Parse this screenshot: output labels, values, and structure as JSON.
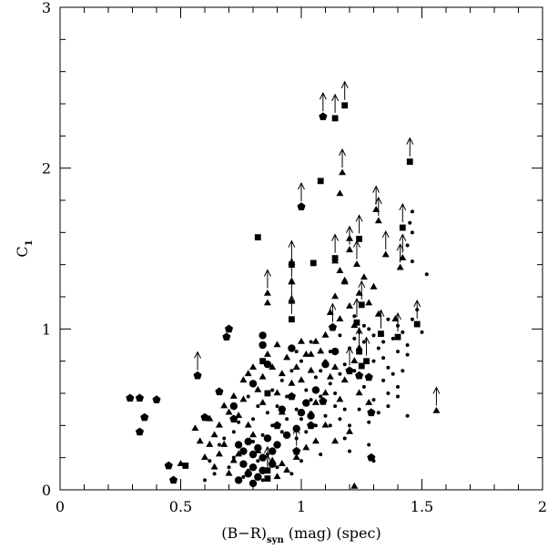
{
  "chart_data": {
    "type": "scatter",
    "xlabel": {
      "main": "(B−R)",
      "sub": "syn",
      "rest": " (mag) (spec)"
    },
    "ylabel": {
      "main": "C",
      "sub": "1"
    },
    "xlim": [
      0,
      2
    ],
    "ylim": [
      0,
      3
    ],
    "x_ticks": [
      "0",
      "0.5",
      "1",
      "1.5",
      "2"
    ],
    "y_ticks": [
      "0",
      "1",
      "2",
      "3"
    ],
    "grid": false,
    "legend": "none",
    "markers": {
      "dot": [
        [
          0.78,
          0.58
        ],
        [
          0.82,
          0.52
        ],
        [
          0.88,
          0.62
        ],
        [
          0.92,
          0.68
        ],
        [
          0.96,
          0.74
        ],
        [
          1.0,
          0.8
        ],
        [
          1.02,
          0.62
        ],
        [
          1.04,
          0.56
        ],
        [
          1.06,
          0.7
        ],
        [
          1.08,
          0.74
        ],
        [
          1.1,
          0.8
        ],
        [
          1.12,
          0.66
        ],
        [
          1.14,
          0.6
        ],
        [
          1.16,
          0.72
        ],
        [
          1.18,
          0.78
        ],
        [
          1.2,
          0.88
        ],
        [
          1.22,
          0.94
        ],
        [
          1.24,
          0.98
        ],
        [
          1.26,
          0.92
        ],
        [
          1.28,
          1.0
        ],
        [
          1.3,
          0.96
        ],
        [
          1.32,
          0.88
        ],
        [
          1.34,
          0.82
        ],
        [
          1.36,
          0.76
        ],
        [
          1.38,
          0.94
        ],
        [
          1.4,
          1.02
        ],
        [
          1.42,
          0.98
        ],
        [
          1.44,
          0.9
        ],
        [
          1.46,
          1.06
        ],
        [
          1.48,
          1.12
        ],
        [
          1.5,
          0.98
        ],
        [
          1.52,
          1.34
        ],
        [
          1.46,
          1.42
        ],
        [
          1.44,
          1.52
        ],
        [
          1.46,
          1.6
        ],
        [
          1.45,
          1.66
        ],
        [
          1.46,
          1.73
        ],
        [
          1.3,
          0.8
        ],
        [
          1.34,
          0.68
        ],
        [
          1.38,
          0.72
        ],
        [
          1.4,
          0.64
        ],
        [
          1.42,
          0.74
        ],
        [
          1.44,
          0.84
        ],
        [
          1.36,
          0.6
        ],
        [
          1.3,
          0.56
        ],
        [
          1.26,
          0.64
        ],
        [
          1.22,
          0.74
        ],
        [
          1.18,
          0.5
        ],
        [
          1.16,
          0.44
        ],
        [
          1.14,
          0.52
        ],
        [
          1.1,
          0.46
        ],
        [
          1.06,
          0.4
        ],
        [
          1.02,
          0.36
        ],
        [
          0.98,
          0.32
        ],
        [
          0.94,
          0.44
        ],
        [
          0.92,
          0.36
        ],
        [
          0.9,
          0.28
        ],
        [
          0.88,
          0.4
        ],
        [
          0.86,
          0.22
        ],
        [
          0.84,
          0.34
        ],
        [
          0.82,
          0.18
        ],
        [
          0.8,
          0.3
        ],
        [
          0.78,
          0.12
        ],
        [
          0.76,
          0.24
        ],
        [
          0.74,
          0.42
        ],
        [
          0.72,
          0.2
        ],
        [
          0.7,
          0.14
        ],
        [
          0.68,
          0.32
        ],
        [
          0.66,
          0.28
        ],
        [
          0.64,
          0.1
        ],
        [
          0.62,
          0.18
        ],
        [
          0.6,
          0.06
        ],
        [
          0.72,
          0.36
        ],
        [
          0.8,
          0.44
        ],
        [
          0.86,
          0.48
        ],
        [
          0.9,
          0.52
        ],
        [
          0.94,
          0.58
        ],
        [
          0.98,
          0.5
        ],
        [
          1.0,
          0.44
        ],
        [
          1.04,
          0.48
        ],
        [
          1.08,
          0.58
        ],
        [
          1.12,
          0.4
        ],
        [
          1.18,
          0.32
        ],
        [
          1.2,
          0.4
        ],
        [
          1.24,
          0.5
        ],
        [
          1.28,
          0.42
        ],
        [
          1.32,
          0.48
        ],
        [
          1.36,
          0.52
        ],
        [
          1.4,
          0.58
        ],
        [
          1.44,
          0.46
        ],
        [
          1.28,
          0.28
        ],
        [
          1.2,
          0.24
        ],
        [
          1.3,
          0.18
        ],
        [
          1.08,
          0.22
        ],
        [
          1.0,
          0.18
        ],
        [
          0.96,
          0.1
        ],
        [
          0.9,
          0.14
        ],
        [
          0.84,
          0.06
        ],
        [
          0.76,
          0.08
        ],
        [
          1.34,
          0.92
        ],
        [
          1.26,
          1.02
        ],
        [
          1.22,
          1.08
        ],
        [
          1.16,
          0.96
        ],
        [
          1.12,
          0.86
        ],
        [
          1.04,
          0.92
        ],
        [
          0.98,
          0.86
        ],
        [
          1.36,
          1.06
        ],
        [
          1.4,
          0.86
        ]
      ],
      "circle": [
        [
          0.84,
          0.96
        ],
        [
          0.84,
          0.9
        ],
        [
          0.96,
          0.88
        ],
        [
          0.86,
          0.78
        ],
        [
          0.8,
          0.66
        ],
        [
          0.72,
          0.52
        ],
        [
          0.74,
          0.28
        ],
        [
          0.76,
          0.24
        ],
        [
          0.78,
          0.3
        ],
        [
          0.8,
          0.22
        ],
        [
          0.82,
          0.26
        ],
        [
          0.84,
          0.2
        ],
        [
          0.86,
          0.32
        ],
        [
          0.88,
          0.24
        ],
        [
          0.9,
          0.28
        ],
        [
          0.76,
          0.16
        ],
        [
          0.78,
          0.1
        ],
        [
          0.8,
          0.14
        ],
        [
          0.82,
          0.08
        ],
        [
          0.84,
          0.12
        ],
        [
          0.74,
          0.06
        ],
        [
          0.8,
          0.04
        ],
        [
          0.94,
          0.34
        ],
        [
          0.98,
          0.38
        ],
        [
          1.0,
          0.48
        ],
        [
          1.02,
          0.54
        ],
        [
          1.06,
          0.62
        ],
        [
          1.1,
          0.78
        ],
        [
          1.14,
          0.86
        ],
        [
          0.92,
          0.5
        ],
        [
          1.04,
          0.46
        ],
        [
          0.88,
          0.16
        ]
      ],
      "pentagon": [
        [
          0.29,
          0.57
        ],
        [
          0.33,
          0.57
        ],
        [
          0.4,
          0.56
        ],
        [
          0.35,
          0.45
        ],
        [
          0.33,
          0.36
        ],
        [
          0.57,
          0.71
        ],
        [
          0.69,
          0.95
        ],
        [
          0.7,
          1.0
        ],
        [
          0.66,
          0.61
        ],
        [
          0.6,
          0.45
        ],
        [
          0.45,
          0.15
        ],
        [
          0.47,
          0.06
        ],
        [
          1.0,
          1.76
        ],
        [
          1.09,
          2.32
        ],
        [
          1.13,
          1.01
        ],
        [
          1.24,
          0.71
        ],
        [
          1.29,
          0.48
        ],
        [
          1.29,
          0.2
        ],
        [
          1.09,
          0.55
        ],
        [
          0.96,
          0.58
        ],
        [
          0.9,
          0.4
        ],
        [
          0.72,
          0.44
        ],
        [
          1.04,
          0.4
        ],
        [
          0.98,
          0.24
        ],
        [
          1.2,
          0.74
        ],
        [
          1.28,
          0.7
        ]
      ],
      "square": [
        [
          0.52,
          0.15
        ],
        [
          0.82,
          1.57
        ],
        [
          0.96,
          1.4
        ],
        [
          1.05,
          1.41
        ],
        [
          0.96,
          1.06
        ],
        [
          1.08,
          1.92
        ],
        [
          1.14,
          2.31
        ],
        [
          1.18,
          2.39
        ],
        [
          1.45,
          2.04
        ],
        [
          1.24,
          1.56
        ],
        [
          1.42,
          1.63
        ],
        [
          1.14,
          1.44
        ],
        [
          1.25,
          1.15
        ],
        [
          1.23,
          1.04
        ],
        [
          1.33,
          0.97
        ],
        [
          1.4,
          0.95
        ],
        [
          1.48,
          1.03
        ],
        [
          1.24,
          0.86
        ],
        [
          1.27,
          0.8
        ],
        [
          1.25,
          0.77
        ],
        [
          0.86,
          0.12
        ],
        [
          0.86,
          0.07
        ],
        [
          0.84,
          0.8
        ],
        [
          0.86,
          0.6
        ]
      ],
      "triangle": [
        [
          0.5,
          0.16
        ],
        [
          0.56,
          0.38
        ],
        [
          0.58,
          0.3
        ],
        [
          0.62,
          0.44
        ],
        [
          0.64,
          0.34
        ],
        [
          0.66,
          0.4
        ],
        [
          0.68,
          0.28
        ],
        [
          0.7,
          0.48
        ],
        [
          0.72,
          0.58
        ],
        [
          0.74,
          0.46
        ],
        [
          0.76,
          0.68
        ],
        [
          0.78,
          0.72
        ],
        [
          0.8,
          0.76
        ],
        [
          0.82,
          0.62
        ],
        [
          0.84,
          0.7
        ],
        [
          0.86,
          0.84
        ],
        [
          0.88,
          0.76
        ],
        [
          0.9,
          0.6
        ],
        [
          0.92,
          0.72
        ],
        [
          0.94,
          0.82
        ],
        [
          0.96,
          0.66
        ],
        [
          0.98,
          0.76
        ],
        [
          1.0,
          0.68
        ],
        [
          1.02,
          0.84
        ],
        [
          1.04,
          0.74
        ],
        [
          1.06,
          0.92
        ],
        [
          1.08,
          0.86
        ],
        [
          1.1,
          0.96
        ],
        [
          1.12,
          1.1
        ],
        [
          1.14,
          1.2
        ],
        [
          1.16,
          1.06
        ],
        [
          1.18,
          1.3
        ],
        [
          1.2,
          1.14
        ],
        [
          1.22,
          1.02
        ],
        [
          1.24,
          1.22
        ],
        [
          1.26,
          1.32
        ],
        [
          1.28,
          1.16
        ],
        [
          1.3,
          1.26
        ],
        [
          1.14,
          1.42
        ],
        [
          1.16,
          1.36
        ],
        [
          1.18,
          1.29
        ],
        [
          1.2,
          1.49
        ],
        [
          1.23,
          1.4
        ],
        [
          1.31,
          1.74
        ],
        [
          1.35,
          1.46
        ],
        [
          1.42,
          1.44
        ],
        [
          1.41,
          1.38
        ],
        [
          1.16,
          1.84
        ],
        [
          1.17,
          1.97
        ],
        [
          1.32,
          1.67
        ],
        [
          1.39,
          1.06
        ],
        [
          1.32,
          1.09
        ],
        [
          1.2,
          1.56
        ],
        [
          0.96,
          1.17
        ],
        [
          0.96,
          1.29
        ],
        [
          0.86,
          1.16
        ],
        [
          0.86,
          1.22
        ],
        [
          1.56,
          0.49
        ],
        [
          1.0,
          0.92
        ],
        [
          1.04,
          0.84
        ],
        [
          1.06,
          0.54
        ],
        [
          1.1,
          0.6
        ],
        [
          1.12,
          0.7
        ],
        [
          1.14,
          0.76
        ],
        [
          1.18,
          0.68
        ],
        [
          1.22,
          0.8
        ],
        [
          1.24,
          0.88
        ],
        [
          1.16,
          0.56
        ],
        [
          1.1,
          0.4
        ],
        [
          1.06,
          0.3
        ],
        [
          1.02,
          0.26
        ],
        [
          0.98,
          0.2
        ],
        [
          0.94,
          0.12
        ],
        [
          0.92,
          0.16
        ],
        [
          0.9,
          0.08
        ],
        [
          0.88,
          0.18
        ],
        [
          0.82,
          0.24
        ],
        [
          0.8,
          0.34
        ],
        [
          0.78,
          0.4
        ],
        [
          0.74,
          0.22
        ],
        [
          0.72,
          0.18
        ],
        [
          0.7,
          0.1
        ],
        [
          0.66,
          0.22
        ],
        [
          0.64,
          0.14
        ],
        [
          0.62,
          0.28
        ],
        [
          0.6,
          0.2
        ],
        [
          0.68,
          0.52
        ],
        [
          0.76,
          0.56
        ],
        [
          0.92,
          0.48
        ],
        [
          1.22,
          0.02
        ],
        [
          1.24,
          0.6
        ],
        [
          1.28,
          0.54
        ],
        [
          1.2,
          0.36
        ],
        [
          1.14,
          0.3
        ],
        [
          0.9,
          0.9
        ],
        [
          0.84,
          0.54
        ]
      ]
    },
    "lower_limit_arrows": [
      [
        1.09,
        2.32
      ],
      [
        1.14,
        2.31
      ],
      [
        1.18,
        2.39
      ],
      [
        1.45,
        2.04
      ],
      [
        1.0,
        1.76
      ],
      [
        1.17,
        1.97
      ],
      [
        1.31,
        1.74
      ],
      [
        1.32,
        1.67
      ],
      [
        1.42,
        1.63
      ],
      [
        1.24,
        1.56
      ],
      [
        1.14,
        1.44
      ],
      [
        1.2,
        1.49
      ],
      [
        1.23,
        1.4
      ],
      [
        1.35,
        1.46
      ],
      [
        1.42,
        1.44
      ],
      [
        1.41,
        1.38
      ],
      [
        0.96,
        1.4
      ],
      [
        0.96,
        1.29
      ],
      [
        0.96,
        1.17
      ],
      [
        0.96,
        1.06
      ],
      [
        0.86,
        1.22
      ],
      [
        1.25,
        1.15
      ],
      [
        1.23,
        1.04
      ],
      [
        1.33,
        0.97
      ],
      [
        1.4,
        0.95
      ],
      [
        1.48,
        1.03
      ],
      [
        1.24,
        0.86
      ],
      [
        1.27,
        0.8
      ],
      [
        1.13,
        1.01
      ],
      [
        0.57,
        0.71
      ],
      [
        1.56,
        0.49
      ],
      [
        0.86,
        0.12
      ],
      [
        0.86,
        0.07
      ],
      [
        1.2,
        0.74
      ],
      [
        0.98,
        0.24
      ]
    ]
  }
}
